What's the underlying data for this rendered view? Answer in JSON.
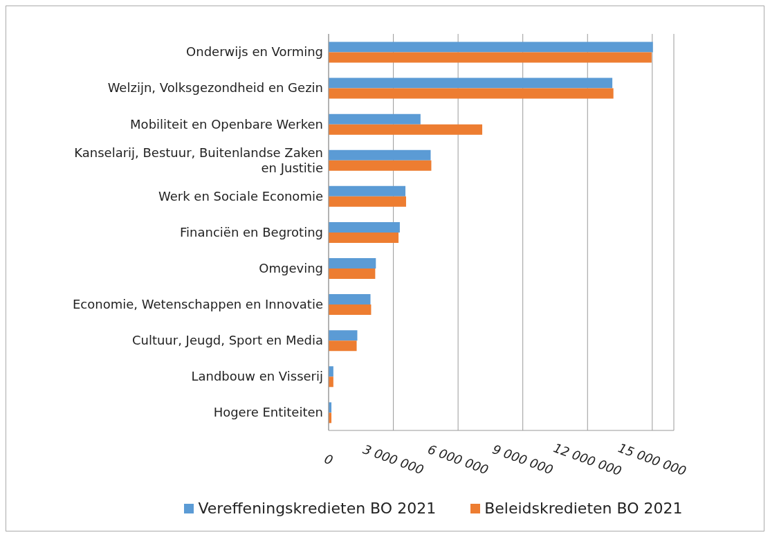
{
  "chart_data": {
    "type": "bar",
    "orientation": "horizontal",
    "categories": [
      "Onderwijs en Vorming",
      "Welzijn, Volksgezondheid en Gezin",
      "Mobiliteit en Openbare Werken",
      "Kanselarij, Bestuur, Buitenlandse Zaken en Justitie",
      "Werk en Sociale Economie",
      "Financiën en Begroting",
      "Omgeving",
      "Economie, Wetenschappen en Innovatie",
      "Cultuur, Jeugd, Sport en Media",
      "Landbouw en Visserij",
      "Hogere Entiteiten"
    ],
    "series": [
      {
        "name": "Vereffeningskredieten BO 2021",
        "color": "#5b9bd5",
        "values": [
          15030000,
          13150000,
          4260000,
          4730000,
          3560000,
          3300000,
          2190000,
          1940000,
          1330000,
          220000,
          130000
        ]
      },
      {
        "name": "Beleidskredieten BO 2021",
        "color": "#ed7d31",
        "values": [
          14970000,
          13200000,
          7120000,
          4760000,
          3590000,
          3240000,
          2160000,
          1970000,
          1300000,
          220000,
          130000
        ]
      }
    ],
    "xlim": [
      0,
      16000000
    ],
    "xticks": [
      {
        "value": 0,
        "label": "0"
      },
      {
        "value": 3000000,
        "label": "3 000 000"
      },
      {
        "value": 6000000,
        "label": "6 000 000"
      },
      {
        "value": 9000000,
        "label": "9 000 000"
      },
      {
        "value": 12000000,
        "label": "12 000 000"
      },
      {
        "value": 15000000,
        "label": "15 000 000"
      }
    ],
    "grid": "x",
    "legend": "bottom"
  }
}
